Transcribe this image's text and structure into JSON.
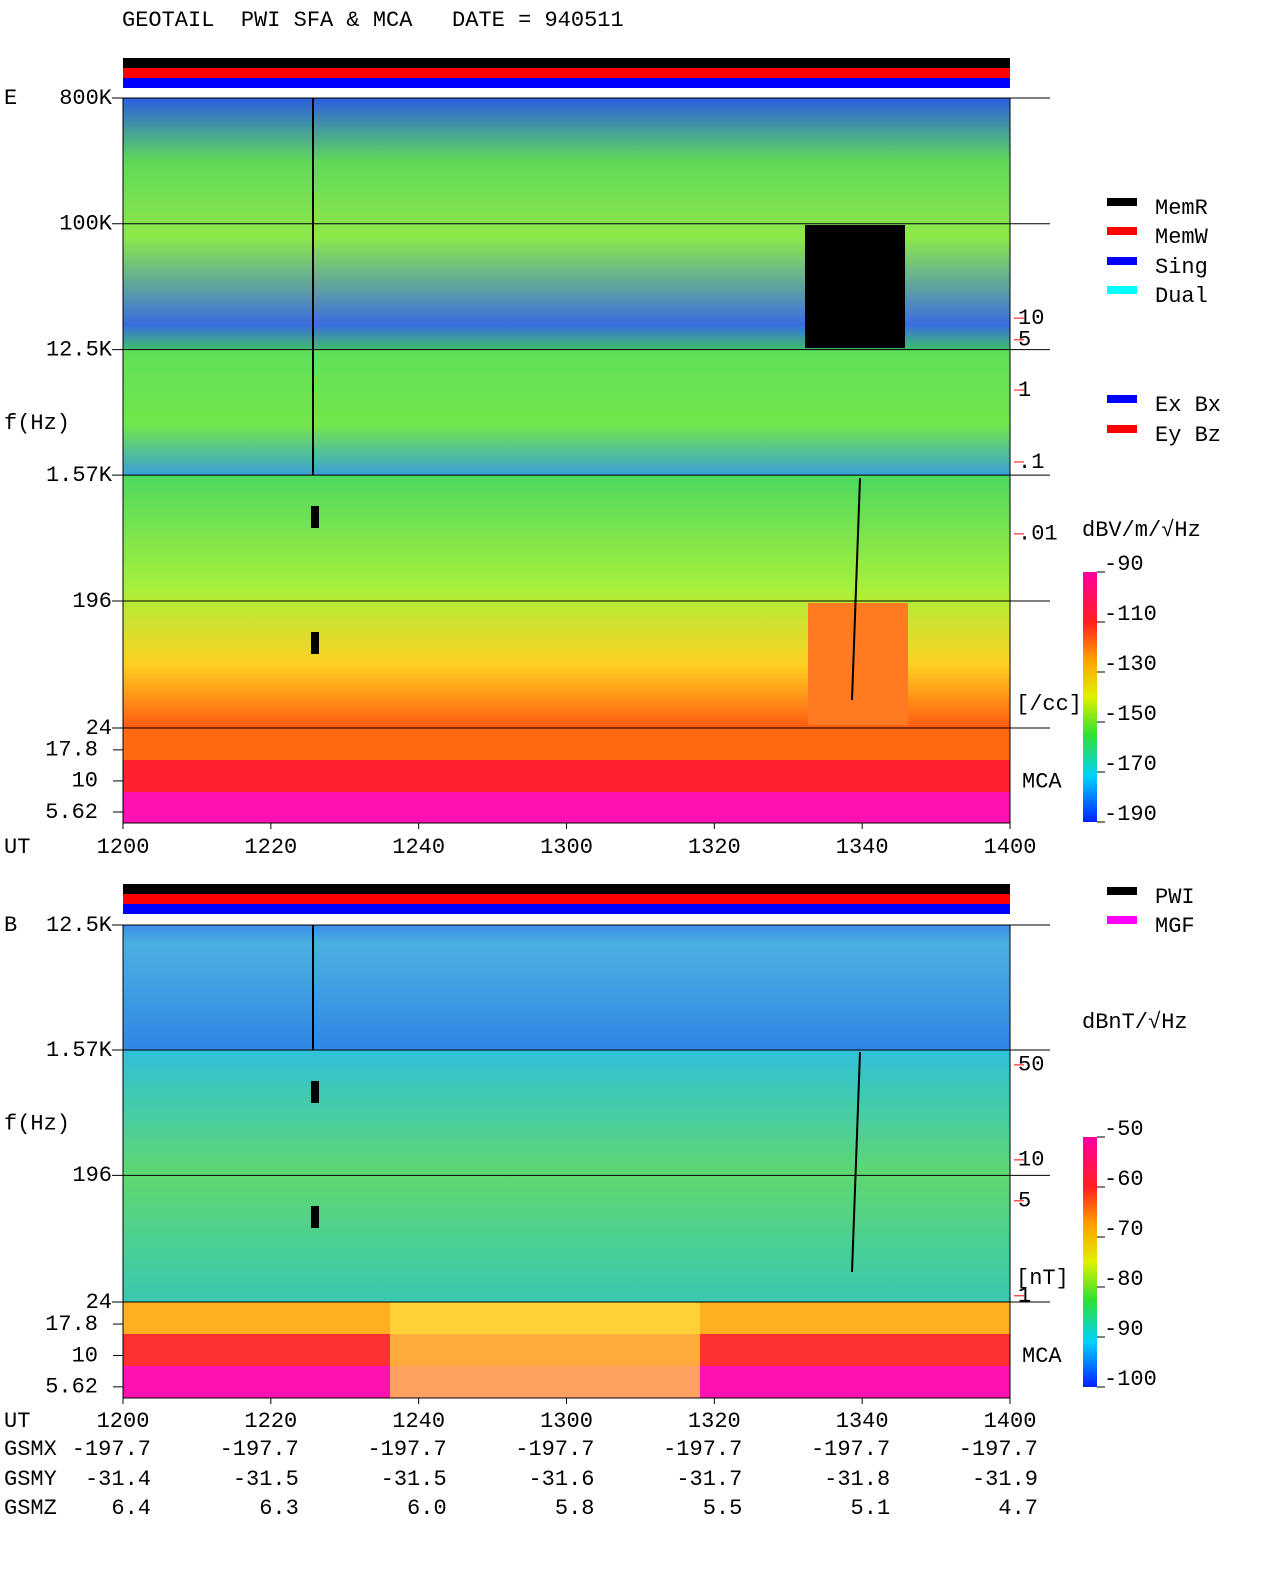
{
  "title": "GEOTAIL  PWI SFA & MCA   DATE = 940511",
  "chart_data": [
    {
      "type": "spectrogram",
      "panel_label": "E",
      "y_label": "f(Hz)",
      "x_label": "UT",
      "log_y": true,
      "ylim": [
        24,
        800000
      ],
      "yticks": [
        {
          "value": 800000,
          "label": "800K"
        },
        {
          "value": 100000,
          "label": "100K"
        },
        {
          "value": 12500,
          "label": "12.5K"
        },
        {
          "value": 1570,
          "label": "1.57K"
        },
        196,
        24
      ],
      "mca_label": "MCA",
      "mca_ylim": [
        4.58,
        26.7
      ],
      "mca_yticks": [
        17.8,
        10,
        5.62
      ],
      "y2_label": "[/cc]",
      "y2_color": "#ff0000",
      "y2lim": [
        2e-05,
        11500
      ],
      "y2ticks": [
        10,
        5,
        1,
        {
          "value": 0.1,
          "label": ".1"
        },
        {
          "value": 0.01,
          "label": ".01"
        }
      ],
      "xticks": [
        "1200",
        "1220",
        "1240",
        "1300",
        "1320",
        "1340",
        "1400"
      ],
      "legend": [
        {
          "name": "MemR",
          "color": "#000000"
        },
        {
          "name": "MemW",
          "color": "#ff0000"
        },
        {
          "name": "Sing",
          "color": "#0000ff"
        },
        {
          "name": "Dual",
          "color": "#00ffff"
        }
      ],
      "legend2": [
        {
          "name": "Ex Bx",
          "color": "#0000ff"
        },
        {
          "name": "Ey Bz",
          "color": "#ff0000"
        }
      ],
      "colorbar": {
        "label": "dBV/m/√Hz",
        "clim": [
          -190,
          -90
        ],
        "ticks": [
          -90,
          -110,
          -130,
          -150,
          -170,
          -190
        ]
      }
    },
    {
      "type": "spectrogram",
      "panel_label": "B",
      "y_label": "f(Hz)",
      "x_label": "UT",
      "log_y": true,
      "ylim": [
        24,
        12500
      ],
      "yticks": [
        {
          "value": 12500,
          "label": "12.5K"
        },
        {
          "value": 1570,
          "label": "1.57K"
        },
        196,
        24
      ],
      "mca_label": "MCA",
      "mca_ylim": [
        4.58,
        26.7
      ],
      "mca_yticks": [
        17.8,
        10,
        5.62
      ],
      "y2_label": "[nT]",
      "y2_color": "#ff0000",
      "y2lim": [
        0.9,
        535
      ],
      "y2ticks": [
        50,
        10,
        5,
        1
      ],
      "xticks": [
        "1200",
        "1220",
        "1240",
        "1300",
        "1320",
        "1340",
        "1400"
      ],
      "legend": [
        {
          "name": "PWI",
          "color": "#000000"
        },
        {
          "name": "MGF",
          "color": "#ff00ff"
        }
      ],
      "colorbar": {
        "label": "dBnT/√Hz",
        "clim": [
          -100,
          -50
        ],
        "ticks": [
          -50,
          -60,
          -70,
          -80,
          -90,
          -100
        ]
      }
    }
  ],
  "orbit": {
    "labels": [
      "GSMX",
      "GSMY",
      "GSMZ"
    ],
    "rows": [
      [
        "-197.7",
        "-197.7",
        "-197.7",
        "-197.7",
        "-197.7",
        "-197.7",
        "-197.7"
      ],
      [
        "-31.4",
        "-31.5",
        "-31.5",
        "-31.6",
        "-31.7",
        "-31.8",
        "-31.9"
      ],
      [
        "6.4",
        "6.3",
        "6.0",
        "5.8",
        "5.5",
        "5.1",
        "4.7"
      ]
    ]
  }
}
